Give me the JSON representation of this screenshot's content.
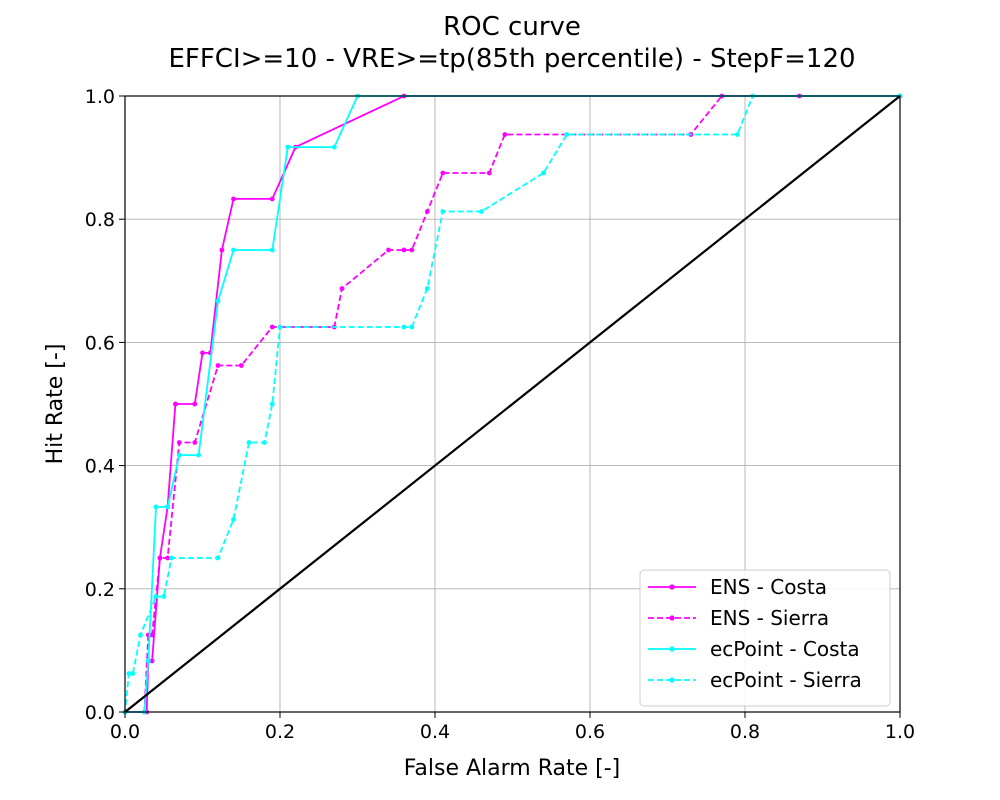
{
  "chart_data": {
    "type": "line",
    "title": "ROC curve",
    "subtitle": "EFFCI>=10 - VRE>=tp(85th percentile) - StepF=120",
    "xlabel": "False Alarm Rate [-]",
    "ylabel": "Hit Rate [-]",
    "xlim": [
      0.0,
      1.0
    ],
    "ylim": [
      0.0,
      1.0
    ],
    "xticks": [
      "0.0",
      "0.2",
      "0.4",
      "0.6",
      "0.8",
      "1.0"
    ],
    "yticks": [
      "0.0",
      "0.2",
      "0.4",
      "0.6",
      "0.8",
      "1.0"
    ],
    "grid": true,
    "legend_position": "bottom-right",
    "series": [
      {
        "name": "ENS - Costa",
        "color": "#ff00ff",
        "style": "solid",
        "x": [
          1.0,
          0.36,
          0.22,
          0.19,
          0.14,
          0.125,
          0.11,
          0.1,
          0.09,
          0.065,
          0.055,
          0.045,
          0.035,
          0.03,
          0.028,
          0.0
        ],
        "y": [
          1.0,
          1.0,
          0.917,
          0.833,
          0.833,
          0.75,
          0.583,
          0.583,
          0.5,
          0.5,
          0.333,
          0.25,
          0.083,
          0.083,
          0.0,
          0.0
        ]
      },
      {
        "name": "ENS - Sierra",
        "color": "#ff00ff",
        "style": "dashed",
        "x": [
          1.0,
          0.87,
          0.77,
          0.73,
          0.49,
          0.47,
          0.41,
          0.39,
          0.37,
          0.36,
          0.34,
          0.28,
          0.27,
          0.19,
          0.15,
          0.12,
          0.09,
          0.07,
          0.055,
          0.045,
          0.035,
          0.03,
          0.025,
          0.0
        ],
        "y": [
          1.0,
          1.0,
          1.0,
          0.9375,
          0.9375,
          0.875,
          0.875,
          0.8125,
          0.75,
          0.75,
          0.75,
          0.6875,
          0.625,
          0.625,
          0.5625,
          0.5625,
          0.4375,
          0.4375,
          0.25,
          0.25,
          0.125,
          0.125,
          0.0,
          0.0
        ]
      },
      {
        "name": "ecPoint - Costa",
        "color": "#00ffff",
        "style": "solid",
        "x": [
          1.0,
          0.3,
          0.27,
          0.21,
          0.19,
          0.14,
          0.12,
          0.095,
          0.07,
          0.055,
          0.04,
          0.03,
          0.025,
          0.0
        ],
        "y": [
          1.0,
          1.0,
          0.917,
          0.917,
          0.75,
          0.75,
          0.667,
          0.417,
          0.417,
          0.333,
          0.333,
          0.083,
          0.0,
          0.0
        ]
      },
      {
        "name": "ecPoint - Sierra",
        "color": "#00ffff",
        "style": "dashed",
        "x": [
          1.0,
          0.81,
          0.79,
          0.57,
          0.54,
          0.46,
          0.41,
          0.39,
          0.37,
          0.36,
          0.2,
          0.19,
          0.18,
          0.16,
          0.14,
          0.12,
          0.06,
          0.05,
          0.04,
          0.02,
          0.01,
          0.005,
          0.0
        ],
        "y": [
          1.0,
          1.0,
          0.9375,
          0.9375,
          0.875,
          0.8125,
          0.8125,
          0.6875,
          0.625,
          0.625,
          0.625,
          0.5,
          0.4375,
          0.4375,
          0.3125,
          0.25,
          0.25,
          0.1875,
          0.1875,
          0.125,
          0.0625,
          0.0625,
          0.0
        ]
      },
      {
        "name": "",
        "color": "#000000",
        "style": "solid",
        "x": [
          0.0,
          1.0
        ],
        "y": [
          0.0,
          1.0
        ],
        "reference": true
      }
    ]
  }
}
